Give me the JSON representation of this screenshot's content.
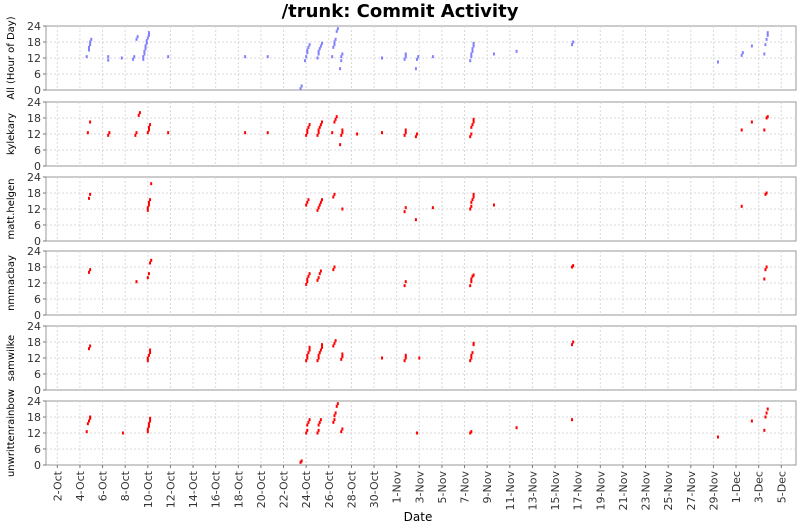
{
  "chart_data": {
    "type": "scatter",
    "title": "/trunk: Commit Activity",
    "xlabel": "Date",
    "x_ticks": [
      "2-Oct",
      "4-Oct",
      "6-Oct",
      "8-Oct",
      "10-Oct",
      "12-Oct",
      "14-Oct",
      "16-Oct",
      "18-Oct",
      "20-Oct",
      "22-Oct",
      "24-Oct",
      "26-Oct",
      "28-Oct",
      "30-Oct",
      "1-Nov",
      "3-Nov",
      "5-Nov",
      "7-Nov",
      "9-Nov",
      "11-Nov",
      "13-Nov",
      "15-Nov",
      "17-Nov",
      "19-Nov",
      "21-Nov",
      "23-Nov",
      "25-Nov",
      "27-Nov",
      "29-Nov",
      "1-Dec",
      "3-Dec",
      "5-Dec"
    ],
    "x_start_label": "1-Oct",
    "x_range_days": [
      0,
      66.3
    ],
    "ylim": [
      0,
      24
    ],
    "y_ticks": [
      0,
      6,
      12,
      18,
      24
    ],
    "grid": true,
    "series": [
      {
        "name": "All (Hour of Day)",
        "color": "#8080ff",
        "points": [
          [
            3.6,
            12.5
          ],
          [
            3.8,
            15
          ],
          [
            3.8,
            16
          ],
          [
            3.9,
            17
          ],
          [
            3.9,
            18
          ],
          [
            4.0,
            19
          ],
          [
            5.5,
            11.2
          ],
          [
            5.5,
            12.5
          ],
          [
            6.7,
            12
          ],
          [
            7.7,
            11.5
          ],
          [
            7.8,
            12.5
          ],
          [
            8.0,
            19
          ],
          [
            8.1,
            20
          ],
          [
            8.6,
            11.5
          ],
          [
            8.6,
            12.5
          ],
          [
            8.7,
            13.5
          ],
          [
            8.7,
            14.5
          ],
          [
            8.8,
            15.5
          ],
          [
            8.8,
            16.5
          ],
          [
            8.9,
            17.5
          ],
          [
            8.9,
            18.5
          ],
          [
            9.0,
            19.5
          ],
          [
            9.1,
            20.5
          ],
          [
            9.1,
            21.5
          ],
          [
            10.8,
            12.5
          ],
          [
            17.6,
            12.5
          ],
          [
            19.6,
            12.5
          ],
          [
            22.5,
            0.5
          ],
          [
            22.6,
            1.5
          ],
          [
            22.9,
            11
          ],
          [
            23.0,
            12.5
          ],
          [
            23.1,
            14
          ],
          [
            23.1,
            15
          ],
          [
            23.2,
            16
          ],
          [
            23.3,
            17
          ],
          [
            24.0,
            12
          ],
          [
            24.1,
            13.5
          ],
          [
            24.1,
            14.5
          ],
          [
            24.2,
            15.5
          ],
          [
            24.3,
            16.5
          ],
          [
            24.4,
            17.5
          ],
          [
            25.3,
            12.5
          ],
          [
            25.4,
            16
          ],
          [
            25.5,
            17
          ],
          [
            25.5,
            18
          ],
          [
            25.6,
            19
          ],
          [
            25.7,
            22
          ],
          [
            25.8,
            23
          ],
          [
            26.0,
            8
          ],
          [
            26.1,
            11
          ],
          [
            26.1,
            12.5
          ],
          [
            26.2,
            13.5
          ],
          [
            29.7,
            12
          ],
          [
            31.7,
            11.5
          ],
          [
            31.8,
            12.5
          ],
          [
            31.8,
            13.5
          ],
          [
            32.7,
            8
          ],
          [
            32.8,
            11.5
          ],
          [
            32.9,
            12.5
          ],
          [
            34.2,
            12.5
          ],
          [
            37.5,
            11
          ],
          [
            37.6,
            12.5
          ],
          [
            37.6,
            13.5
          ],
          [
            37.7,
            14.5
          ],
          [
            37.7,
            15.5
          ],
          [
            37.8,
            16.5
          ],
          [
            37.8,
            17.5
          ],
          [
            39.6,
            13.5
          ],
          [
            41.6,
            14.5
          ],
          [
            46.5,
            17
          ],
          [
            46.6,
            18
          ],
          [
            59.4,
            10.5
          ],
          [
            61.5,
            13
          ],
          [
            61.6,
            14
          ],
          [
            62.4,
            16.5
          ],
          [
            63.5,
            13.5
          ],
          [
            63.6,
            17
          ],
          [
            63.7,
            19
          ],
          [
            63.8,
            20.5
          ],
          [
            63.8,
            21.5
          ]
        ]
      },
      {
        "name": "kylekary",
        "color": "#ff0000",
        "points": [
          [
            3.7,
            12.5
          ],
          [
            3.9,
            16.5
          ],
          [
            5.5,
            11.5
          ],
          [
            5.6,
            12.5
          ],
          [
            7.9,
            11.5
          ],
          [
            8.0,
            12.5
          ],
          [
            8.2,
            19
          ],
          [
            8.3,
            20
          ],
          [
            9.0,
            12.5
          ],
          [
            9.1,
            13.5
          ],
          [
            9.1,
            14.5
          ],
          [
            9.2,
            15.5
          ],
          [
            10.8,
            12.5
          ],
          [
            17.6,
            12.5
          ],
          [
            19.6,
            12.5
          ],
          [
            23.0,
            11.5
          ],
          [
            23.1,
            12.5
          ],
          [
            23.1,
            13.5
          ],
          [
            23.2,
            14.5
          ],
          [
            23.3,
            15.5
          ],
          [
            24.0,
            11.5
          ],
          [
            24.1,
            12.5
          ],
          [
            24.1,
            13.5
          ],
          [
            24.2,
            14.5
          ],
          [
            24.3,
            15.5
          ],
          [
            24.4,
            16.5
          ],
          [
            25.3,
            12.5
          ],
          [
            25.5,
            16.5
          ],
          [
            25.6,
            17.5
          ],
          [
            25.7,
            18.5
          ],
          [
            26.0,
            8
          ],
          [
            26.1,
            11.5
          ],
          [
            26.2,
            12.5
          ],
          [
            26.2,
            13.5
          ],
          [
            27.5,
            12
          ],
          [
            29.7,
            12.5
          ],
          [
            31.7,
            11.5
          ],
          [
            31.8,
            12.5
          ],
          [
            31.8,
            13.5
          ],
          [
            32.7,
            11
          ],
          [
            32.8,
            12
          ],
          [
            37.5,
            11
          ],
          [
            37.6,
            12
          ],
          [
            37.6,
            14.5
          ],
          [
            37.7,
            15.5
          ],
          [
            37.8,
            16.5
          ],
          [
            37.8,
            17.5
          ],
          [
            61.5,
            13.5
          ],
          [
            62.4,
            16.5
          ],
          [
            63.5,
            13.5
          ],
          [
            63.7,
            18
          ],
          [
            63.8,
            18.5
          ]
        ]
      },
      {
        "name": "matt.helgen",
        "color": "#ff0000",
        "points": [
          [
            3.8,
            16
          ],
          [
            3.9,
            17.5
          ],
          [
            9.0,
            11.5
          ],
          [
            9.0,
            12.5
          ],
          [
            9.1,
            13.5
          ],
          [
            9.1,
            14.5
          ],
          [
            9.2,
            15.5
          ],
          [
            9.3,
            21.5
          ],
          [
            23.0,
            13.5
          ],
          [
            23.1,
            14.5
          ],
          [
            23.2,
            15.5
          ],
          [
            24.0,
            11.5
          ],
          [
            24.1,
            12.5
          ],
          [
            24.2,
            13.5
          ],
          [
            24.3,
            14.5
          ],
          [
            24.4,
            15.5
          ],
          [
            25.4,
            16.5
          ],
          [
            25.5,
            17.5
          ],
          [
            26.2,
            12
          ],
          [
            31.7,
            11
          ],
          [
            31.8,
            12.5
          ],
          [
            32.7,
            8
          ],
          [
            34.2,
            12.5
          ],
          [
            37.5,
            12
          ],
          [
            37.6,
            13
          ],
          [
            37.6,
            14.5
          ],
          [
            37.7,
            15.5
          ],
          [
            37.8,
            16.5
          ],
          [
            37.8,
            17.5
          ],
          [
            39.6,
            13.5
          ],
          [
            61.5,
            13
          ],
          [
            63.6,
            17.5
          ],
          [
            63.7,
            18
          ]
        ]
      },
      {
        "name": "nmmacbay",
        "color": "#ff0000",
        "points": [
          [
            3.8,
            16
          ],
          [
            3.9,
            17
          ],
          [
            8.0,
            12.5
          ],
          [
            9.0,
            14
          ],
          [
            9.1,
            15.5
          ],
          [
            9.2,
            19.5
          ],
          [
            9.3,
            20.5
          ],
          [
            23.0,
            11.5
          ],
          [
            23.1,
            12.5
          ],
          [
            23.1,
            13.5
          ],
          [
            23.2,
            14.5
          ],
          [
            23.3,
            15.5
          ],
          [
            24.0,
            13
          ],
          [
            24.1,
            14
          ],
          [
            24.2,
            15.5
          ],
          [
            24.3,
            16.5
          ],
          [
            25.4,
            17
          ],
          [
            25.5,
            18
          ],
          [
            31.7,
            11
          ],
          [
            31.8,
            12.5
          ],
          [
            37.5,
            11
          ],
          [
            37.6,
            12.5
          ],
          [
            37.6,
            13.5
          ],
          [
            37.7,
            14.5
          ],
          [
            37.8,
            15
          ],
          [
            46.5,
            18
          ],
          [
            46.6,
            18.5
          ],
          [
            63.5,
            13.5
          ],
          [
            63.6,
            17
          ],
          [
            63.7,
            18
          ]
        ]
      },
      {
        "name": "samwilke",
        "color": "#ff0000",
        "points": [
          [
            3.8,
            15.5
          ],
          [
            3.9,
            16.5
          ],
          [
            9.0,
            11
          ],
          [
            9.0,
            12
          ],
          [
            9.1,
            13
          ],
          [
            9.2,
            14
          ],
          [
            9.2,
            15
          ],
          [
            23.0,
            11
          ],
          [
            23.1,
            12
          ],
          [
            23.1,
            13
          ],
          [
            23.2,
            14
          ],
          [
            23.3,
            15
          ],
          [
            23.3,
            16
          ],
          [
            24.0,
            11
          ],
          [
            24.1,
            12
          ],
          [
            24.1,
            13
          ],
          [
            24.2,
            14
          ],
          [
            24.3,
            15
          ],
          [
            24.4,
            16
          ],
          [
            24.4,
            17
          ],
          [
            25.4,
            16.5
          ],
          [
            25.5,
            17.5
          ],
          [
            25.6,
            18.5
          ],
          [
            26.1,
            11.5
          ],
          [
            26.2,
            12.5
          ],
          [
            26.2,
            13.5
          ],
          [
            29.7,
            12
          ],
          [
            31.7,
            11
          ],
          [
            31.8,
            12
          ],
          [
            31.8,
            13
          ],
          [
            33.0,
            12
          ],
          [
            37.5,
            11
          ],
          [
            37.6,
            12
          ],
          [
            37.6,
            13
          ],
          [
            37.7,
            14
          ],
          [
            37.8,
            17
          ],
          [
            37.8,
            17.5
          ],
          [
            46.5,
            17
          ],
          [
            46.6,
            18
          ]
        ]
      },
      {
        "name": "unwrittenrainbow",
        "color": "#ff0000",
        "points": [
          [
            3.6,
            12.5
          ],
          [
            3.7,
            15.5
          ],
          [
            3.8,
            16.5
          ],
          [
            3.9,
            17.5
          ],
          [
            3.9,
            18
          ],
          [
            6.8,
            12
          ],
          [
            9.0,
            12.5
          ],
          [
            9.0,
            13.5
          ],
          [
            9.1,
            14.5
          ],
          [
            9.1,
            15.5
          ],
          [
            9.2,
            16.5
          ],
          [
            9.2,
            17.5
          ],
          [
            22.5,
            1
          ],
          [
            22.6,
            1.5
          ],
          [
            23.0,
            12
          ],
          [
            23.1,
            13
          ],
          [
            23.1,
            15
          ],
          [
            23.2,
            16
          ],
          [
            23.3,
            17
          ],
          [
            24.0,
            12
          ],
          [
            24.1,
            13
          ],
          [
            24.1,
            15
          ],
          [
            24.2,
            16
          ],
          [
            24.3,
            17
          ],
          [
            25.4,
            16
          ],
          [
            25.5,
            17
          ],
          [
            25.5,
            18.5
          ],
          [
            25.6,
            19.5
          ],
          [
            25.7,
            22
          ],
          [
            25.8,
            23
          ],
          [
            26.1,
            12.5
          ],
          [
            26.2,
            13.5
          ],
          [
            32.8,
            12
          ],
          [
            37.5,
            12
          ],
          [
            37.6,
            12.5
          ],
          [
            41.6,
            14
          ],
          [
            46.5,
            17
          ],
          [
            59.4,
            10.5
          ],
          [
            62.4,
            16.5
          ],
          [
            63.5,
            13
          ],
          [
            63.6,
            18
          ],
          [
            63.7,
            19.5
          ],
          [
            63.8,
            21
          ]
        ]
      }
    ]
  }
}
